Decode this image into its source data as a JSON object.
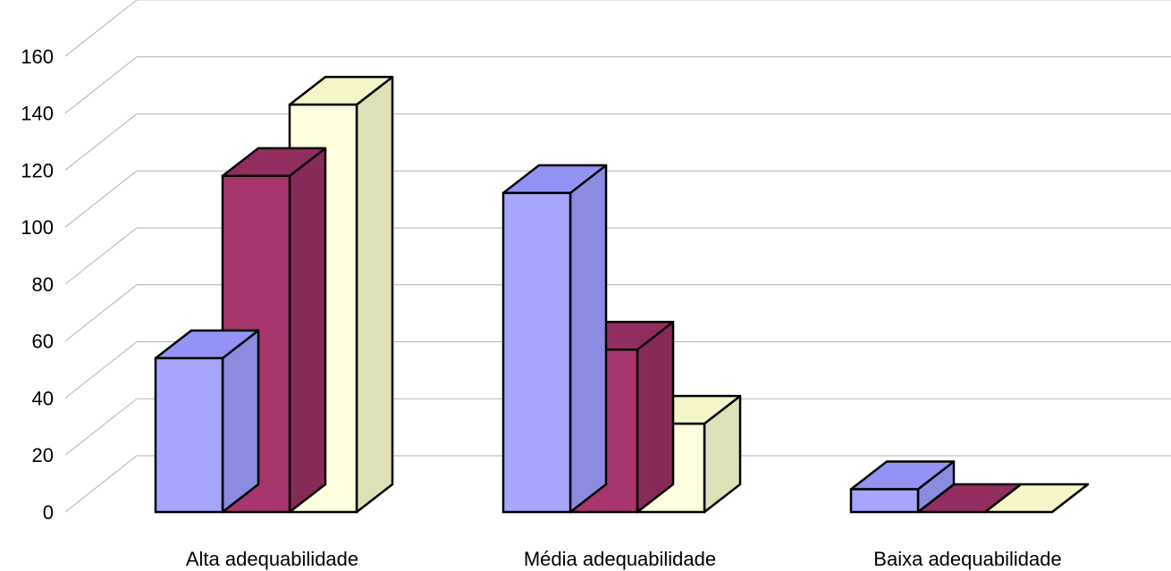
{
  "chart_data": {
    "type": "bar",
    "title": "",
    "xlabel": "",
    "ylabel": "",
    "ylim": [
      0,
      160
    ],
    "yticks": [
      0,
      20,
      40,
      60,
      80,
      100,
      120,
      140,
      160
    ],
    "grid": true,
    "legend": "none",
    "three_d": true,
    "categories": [
      "Alta adequabilidade",
      "Média adequabilidade",
      "Baixa adequabilidade"
    ],
    "series": [
      {
        "values": [
          54,
          112,
          8
        ],
        "color": "#a6a6ff",
        "side_color": "#8b8be0",
        "top_color": "#9393f5"
      },
      {
        "values": [
          118,
          57,
          0
        ],
        "color": "#a6366b",
        "side_color": "#862b57",
        "top_color": "#922e5f"
      },
      {
        "values": [
          143,
          31,
          0
        ],
        "color": "#ffffe0",
        "side_color": "#e0e0b8",
        "top_color": "#f5f5c8"
      }
    ]
  }
}
